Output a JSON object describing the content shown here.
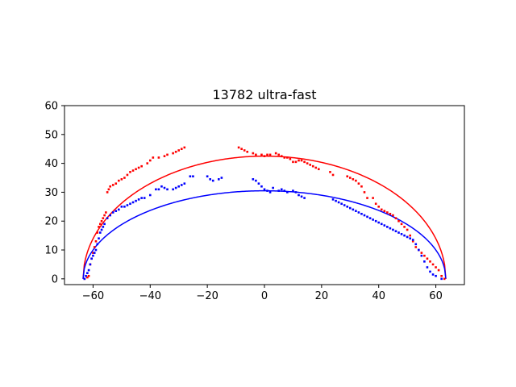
{
  "chart_data": {
    "type": "scatter",
    "title": "13782 ultra-fast",
    "xlabel": "",
    "ylabel": "",
    "xlim": [
      -70,
      70
    ],
    "ylim": [
      -2,
      60
    ],
    "xticks": [
      -60,
      -40,
      -20,
      0,
      20,
      40,
      60
    ],
    "yticks": [
      0,
      10,
      20,
      30,
      40,
      50,
      60
    ],
    "xtick_labels": [
      "−60",
      "−40",
      "−20",
      "0",
      "20",
      "40",
      "60"
    ],
    "ytick_labels": [
      "0",
      "10",
      "20",
      "30",
      "40",
      "50",
      "60"
    ],
    "grid": false,
    "legend": "none",
    "fit_curves": [
      {
        "color": "#ff0000",
        "a": 63.5,
        "b": 42.5
      },
      {
        "color": "#0000ff",
        "a": 63.5,
        "b": 30.5
      }
    ],
    "series": [
      {
        "color": "#ff0000",
        "points": [
          [
            -63,
            0
          ],
          [
            -62,
            0.5
          ],
          [
            -61.5,
            1
          ],
          [
            -61,
            5
          ],
          [
            -60.5,
            7
          ],
          [
            -60,
            9
          ],
          [
            -59.5,
            11
          ],
          [
            -59,
            13
          ],
          [
            -58.5,
            16
          ],
          [
            -58,
            18
          ],
          [
            -57.5,
            19
          ],
          [
            -57,
            20
          ],
          [
            -56.5,
            21
          ],
          [
            -56,
            22
          ],
          [
            -55.5,
            23
          ],
          [
            -55,
            30
          ],
          [
            -54.5,
            31
          ],
          [
            -54,
            32
          ],
          [
            -53,
            32.5
          ],
          [
            -52,
            33
          ],
          [
            -51,
            34
          ],
          [
            -50,
            34.5
          ],
          [
            -49,
            35
          ],
          [
            -48,
            36
          ],
          [
            -47,
            37
          ],
          [
            -46,
            37.5
          ],
          [
            -45,
            38
          ],
          [
            -44,
            38.5
          ],
          [
            -43,
            39
          ],
          [
            -41,
            40
          ],
          [
            -40,
            41
          ],
          [
            -39,
            42
          ],
          [
            -37,
            42
          ],
          [
            -35,
            42.5
          ],
          [
            -34,
            43
          ],
          [
            -32,
            43.5
          ],
          [
            -31,
            44
          ],
          [
            -30,
            44.5
          ],
          [
            -29,
            45
          ],
          [
            -28,
            45.5
          ],
          [
            -9,
            45.5
          ],
          [
            -8,
            45
          ],
          [
            -7,
            44.5
          ],
          [
            -6,
            44
          ],
          [
            -4,
            43.5
          ],
          [
            -3,
            43
          ],
          [
            -1,
            43
          ],
          [
            0,
            42.5
          ],
          [
            1,
            43
          ],
          [
            2,
            43
          ],
          [
            4,
            43.5
          ],
          [
            5,
            43
          ],
          [
            6,
            42.5
          ],
          [
            7,
            42
          ],
          [
            8,
            42
          ],
          [
            9,
            41.5
          ],
          [
            10,
            40.5
          ],
          [
            11,
            40.5
          ],
          [
            12,
            41
          ],
          [
            13,
            41
          ],
          [
            14,
            40.5
          ],
          [
            15,
            40
          ],
          [
            16,
            39.5
          ],
          [
            17,
            39
          ],
          [
            18,
            38.5
          ],
          [
            19,
            38
          ],
          [
            23,
            37
          ],
          [
            24,
            36
          ],
          [
            29,
            35.5
          ],
          [
            30,
            35
          ],
          [
            31,
            34.5
          ],
          [
            32,
            34
          ],
          [
            33,
            33
          ],
          [
            34,
            32
          ],
          [
            35,
            30
          ],
          [
            36,
            28
          ],
          [
            38,
            28
          ],
          [
            39,
            26
          ],
          [
            40,
            25
          ],
          [
            41,
            24
          ],
          [
            42,
            23.5
          ],
          [
            43,
            23
          ],
          [
            44,
            22.5
          ],
          [
            45,
            22
          ],
          [
            46,
            21
          ],
          [
            47,
            20
          ],
          [
            48,
            19
          ],
          [
            49,
            18
          ],
          [
            50,
            17
          ],
          [
            51,
            15
          ],
          [
            52,
            13
          ],
          [
            53,
            11
          ],
          [
            54,
            10
          ],
          [
            55,
            9
          ],
          [
            56,
            8
          ],
          [
            57,
            7
          ],
          [
            58,
            6
          ],
          [
            59,
            5
          ],
          [
            60,
            4
          ],
          [
            61,
            3
          ],
          [
            62,
            1
          ],
          [
            63,
            0
          ]
        ]
      },
      {
        "color": "#0000ff",
        "points": [
          [
            -63,
            0
          ],
          [
            -62.5,
            1
          ],
          [
            -62,
            2
          ],
          [
            -61.5,
            3
          ],
          [
            -61,
            5
          ],
          [
            -60.5,
            7
          ],
          [
            -60,
            8
          ],
          [
            -59.5,
            9
          ],
          [
            -59,
            10
          ],
          [
            -58.5,
            12
          ],
          [
            -58,
            14
          ],
          [
            -57.5,
            16
          ],
          [
            -57,
            17
          ],
          [
            -56.5,
            18
          ],
          [
            -56,
            19
          ],
          [
            -55,
            21
          ],
          [
            -54,
            22
          ],
          [
            -53,
            23
          ],
          [
            -52,
            23.5
          ],
          [
            -51,
            24
          ],
          [
            -50,
            25
          ],
          [
            -49,
            25
          ],
          [
            -48,
            25.5
          ],
          [
            -47,
            26
          ],
          [
            -46,
            26.5
          ],
          [
            -45,
            27
          ],
          [
            -44,
            27.5
          ],
          [
            -43,
            28
          ],
          [
            -42,
            28
          ],
          [
            -40,
            29
          ],
          [
            -38,
            31
          ],
          [
            -37,
            31
          ],
          [
            -36,
            32
          ],
          [
            -35,
            31.5
          ],
          [
            -34,
            31
          ],
          [
            -32,
            31
          ],
          [
            -31,
            31.5
          ],
          [
            -30,
            32
          ],
          [
            -29,
            32.5
          ],
          [
            -28,
            33
          ],
          [
            -26,
            35.5
          ],
          [
            -25,
            35.5
          ],
          [
            -20,
            35.5
          ],
          [
            -19,
            34.5
          ],
          [
            -18,
            34
          ],
          [
            -16,
            34.5
          ],
          [
            -15,
            35
          ],
          [
            -4,
            34.5
          ],
          [
            -3,
            34
          ],
          [
            -2,
            33
          ],
          [
            -1,
            32
          ],
          [
            0,
            31
          ],
          [
            1,
            30.5
          ],
          [
            2,
            30
          ],
          [
            3,
            31.5
          ],
          [
            5,
            30.5
          ],
          [
            6,
            31
          ],
          [
            7,
            30.5
          ],
          [
            8,
            30
          ],
          [
            10,
            30.5
          ],
          [
            11,
            30
          ],
          [
            12,
            29
          ],
          [
            13,
            28.5
          ],
          [
            14,
            28
          ],
          [
            24,
            27.5
          ],
          [
            25,
            27
          ],
          [
            26,
            26.5
          ],
          [
            27,
            26
          ],
          [
            28,
            25.5
          ],
          [
            29,
            25
          ],
          [
            30,
            24.5
          ],
          [
            31,
            24
          ],
          [
            32,
            23.5
          ],
          [
            33,
            23
          ],
          [
            34,
            22.5
          ],
          [
            35,
            22
          ],
          [
            36,
            21.5
          ],
          [
            37,
            21
          ],
          [
            38,
            20.5
          ],
          [
            39,
            20
          ],
          [
            40,
            19.5
          ],
          [
            41,
            19
          ],
          [
            42,
            18.5
          ],
          [
            43,
            18
          ],
          [
            44,
            17.5
          ],
          [
            45,
            17
          ],
          [
            46,
            16.5
          ],
          [
            47,
            16
          ],
          [
            48,
            15.5
          ],
          [
            49,
            15
          ],
          [
            50,
            14.5
          ],
          [
            51,
            14
          ],
          [
            52,
            13.5
          ],
          [
            53,
            12
          ],
          [
            54,
            10
          ],
          [
            55,
            8
          ],
          [
            56,
            6
          ],
          [
            57,
            4
          ],
          [
            58,
            2.5
          ],
          [
            59,
            1.5
          ],
          [
            60,
            1
          ],
          [
            62,
            0
          ]
        ]
      }
    ]
  }
}
